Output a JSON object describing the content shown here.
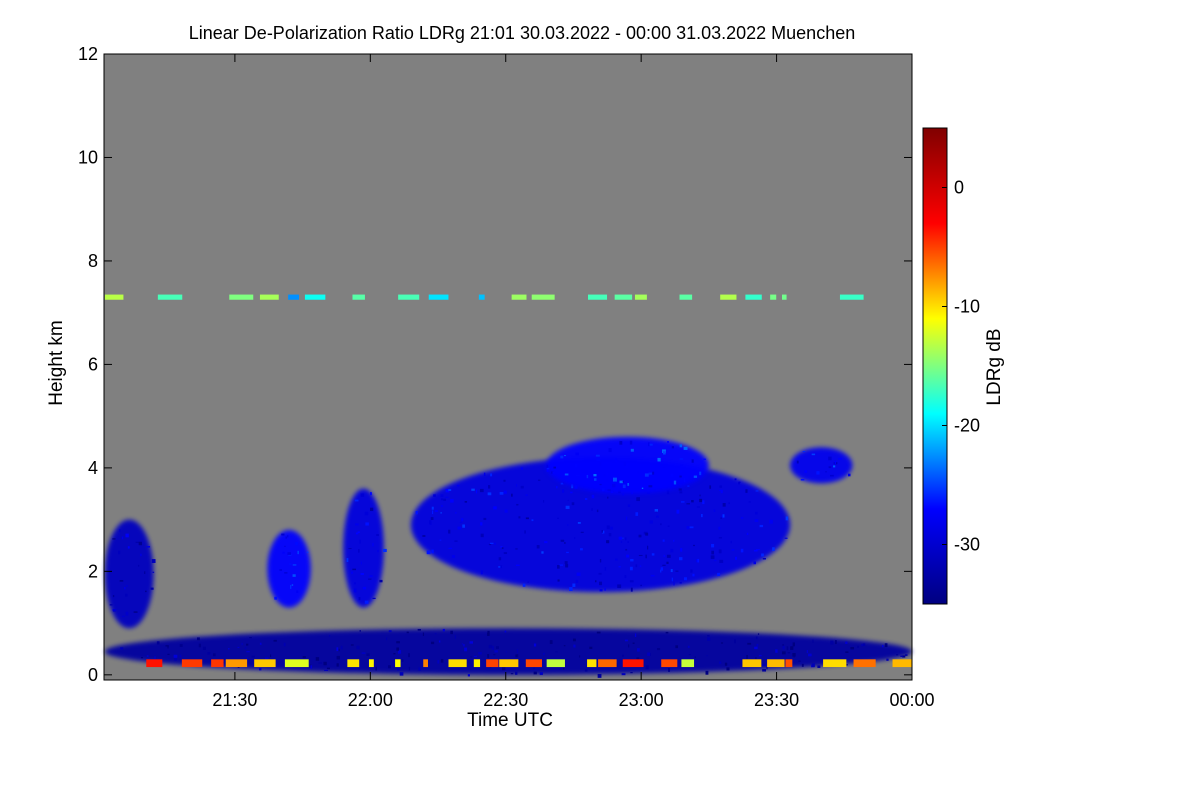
{
  "chart_data": {
    "type": "heatmap",
    "title": "Linear De-Polarization Ratio LDRg   21:01 30.03.2022 - 00:00 31.03.2022 Muenchen",
    "xlabel": "Time UTC",
    "ylabel": "Height km",
    "x_range_hours": [
      21.0167,
      24.0
    ],
    "y_range_km": [
      -0.1,
      12.0
    ],
    "x_ticks": [
      {
        "hour": 21.5,
        "label": "21:30"
      },
      {
        "hour": 22.0,
        "label": "22:00"
      },
      {
        "hour": 22.5,
        "label": "22:30"
      },
      {
        "hour": 23.0,
        "label": "23:00"
      },
      {
        "hour": 23.5,
        "label": "23:30"
      },
      {
        "hour": 24.0,
        "label": "00:00"
      }
    ],
    "y_ticks": [
      {
        "value": 0,
        "label": "0"
      },
      {
        "value": 2,
        "label": "2"
      },
      {
        "value": 4,
        "label": "4"
      },
      {
        "value": 6,
        "label": "6"
      },
      {
        "value": 8,
        "label": "8"
      },
      {
        "value": 10,
        "label": "10"
      },
      {
        "value": 12,
        "label": "12"
      }
    ],
    "background_color": "#808080",
    "colorbar": {
      "label": "LDRg dB",
      "range": [
        -35,
        5
      ],
      "ticks": [
        {
          "value": 0,
          "label": "0"
        },
        {
          "value": -10,
          "label": "-10"
        },
        {
          "value": -20,
          "label": "-20"
        },
        {
          "value": -30,
          "label": "-30"
        }
      ],
      "colormap": "jet",
      "colors": [
        "#000080",
        "#0000ff",
        "#00ffff",
        "#ffff00",
        "#ff0000",
        "#800000"
      ]
    },
    "features": [
      {
        "name": "cloud-main-22:10-23:30",
        "t0": 22.15,
        "t1": 23.55,
        "h0": 1.6,
        "h1": 4.2,
        "ldr": -29
      },
      {
        "name": "cloud-upper-22:40-23:20",
        "t0": 22.65,
        "t1": 23.25,
        "h0": 3.5,
        "h1": 4.6,
        "ldr": -27
      },
      {
        "name": "cloud-column-21:55",
        "t0": 21.9,
        "t1": 22.05,
        "h0": 1.3,
        "h1": 3.6,
        "ldr": -29
      },
      {
        "name": "cloud-21:05-21:20",
        "t0": 21.02,
        "t1": 21.2,
        "h0": 0.9,
        "h1": 3.0,
        "ldr": -31
      },
      {
        "name": "cloud-21:45",
        "t0": 21.62,
        "t1": 21.78,
        "h0": 1.3,
        "h1": 2.8,
        "ldr": -27
      },
      {
        "name": "cloud-23:40",
        "t0": 23.55,
        "t1": 23.78,
        "h0": 3.7,
        "h1": 4.4,
        "ldr": -28
      },
      {
        "name": "cirrus-line-7.3km",
        "t0": 21.02,
        "t1": 23.95,
        "h0": 7.25,
        "h1": 7.35,
        "ldr": -18
      },
      {
        "name": "boundary-layer",
        "t0": 21.02,
        "t1": 24.0,
        "h0": 0.0,
        "h1": 0.9,
        "ldr": -33
      },
      {
        "name": "surface-line-0.2km",
        "t0": 21.02,
        "t1": 24.0,
        "h0": 0.15,
        "h1": 0.3,
        "ldr": -8
      }
    ]
  }
}
